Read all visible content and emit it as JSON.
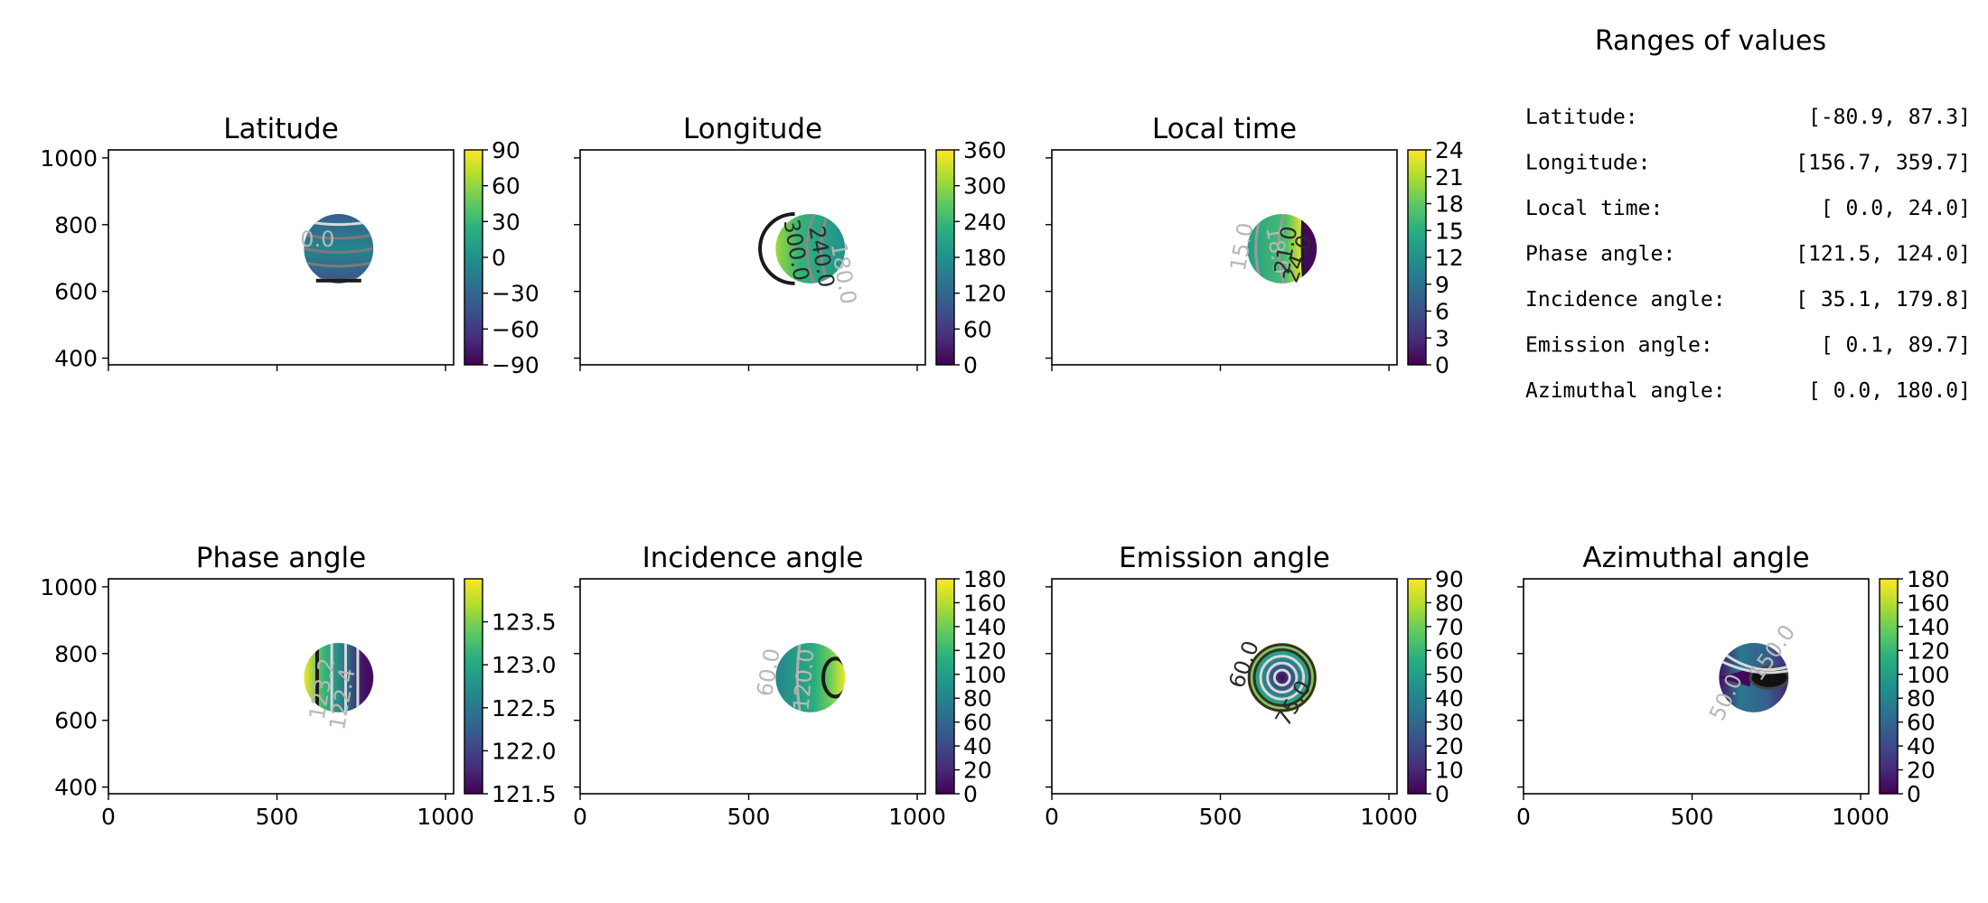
{
  "ranges_panel": {
    "title": "Ranges of values",
    "rows": [
      {
        "label": "Latitude:",
        "value": "[-80.9,  87.3]"
      },
      {
        "label": "Longitude:",
        "value": "[156.7, 359.7]"
      },
      {
        "label": "Local time:",
        "value": "[  0.0,  24.0]"
      },
      {
        "label": "Phase angle:",
        "value": "[121.5, 124.0]"
      },
      {
        "label": "Incidence angle:",
        "value": "[ 35.1, 179.8]"
      },
      {
        "label": "Emission angle:",
        "value": "[  0.1,  89.7]"
      },
      {
        "label": "Azimuthal angle:",
        "value": "[  0.0, 180.0]"
      }
    ]
  },
  "colormap": "viridis",
  "colors": {
    "viridis_low": "#440154",
    "viridis_mid": "#21918c",
    "viridis_high": "#fde725",
    "contour_dark": "#1a1a1a",
    "contour_light": "#d9d9d9"
  },
  "chart_data": [
    {
      "type": "heatmap",
      "name": "latitude",
      "title": "Latitude",
      "xlim": [
        0,
        1024
      ],
      "ylim": [
        380,
        1024
      ],
      "x_ticks": [
        0,
        500,
        1000
      ],
      "x_ticklabels": [
        "",
        "",
        ""
      ],
      "y_ticks": [
        400,
        600,
        800,
        1000
      ],
      "y_ticklabels": [
        "400",
        "600",
        "800",
        "1000"
      ],
      "disk": {
        "center_x": 683,
        "center_y": 728,
        "radius": 103
      },
      "colorbar": {
        "min": -90,
        "max": 90,
        "ticks": [
          -90,
          -60,
          -30,
          0,
          30,
          60,
          90
        ],
        "ticklabels": [
          "−90",
          "−60",
          "−30",
          "0",
          "30",
          "60",
          "90"
        ]
      },
      "contour_labels": [
        {
          "text": "0.0",
          "x": 620,
          "y": 735,
          "rotate": 0,
          "tone": "light"
        }
      ]
    },
    {
      "type": "heatmap",
      "name": "longitude",
      "title": "Longitude",
      "xlim": [
        0,
        1024
      ],
      "ylim": [
        380,
        1024
      ],
      "x_ticks": [
        0,
        500,
        1000
      ],
      "x_ticklabels": [
        "",
        "",
        ""
      ],
      "y_ticks": [
        400,
        600,
        800,
        1000
      ],
      "y_ticklabels": [
        "",
        "",
        "",
        ""
      ],
      "disk": {
        "center_x": 683,
        "center_y": 728,
        "radius": 103
      },
      "colorbar": {
        "min": 0,
        "max": 360,
        "ticks": [
          0,
          60,
          120,
          180,
          240,
          300,
          360
        ],
        "ticklabels": [
          "0",
          "60",
          "120",
          "180",
          "240",
          "300",
          "360"
        ]
      },
      "contour_labels": [
        {
          "text": "300.0",
          "x": 620,
          "y": 720,
          "rotate": 80,
          "tone": "dark"
        },
        {
          "text": "240.0",
          "x": 695,
          "y": 700,
          "rotate": 80,
          "tone": "dark"
        },
        {
          "text": "180.0",
          "x": 760,
          "y": 650,
          "rotate": 80,
          "tone": "light"
        }
      ]
    },
    {
      "type": "heatmap",
      "name": "local-time",
      "title": "Local time",
      "xlim": [
        0,
        1024
      ],
      "ylim": [
        380,
        1024
      ],
      "x_ticks": [
        0,
        500,
        1000
      ],
      "x_ticklabels": [
        "",
        "",
        ""
      ],
      "y_ticks": [
        400,
        600,
        800,
        1000
      ],
      "y_ticklabels": [
        "",
        "",
        "",
        ""
      ],
      "disk": {
        "center_x": 683,
        "center_y": 728,
        "radius": 103
      },
      "colorbar": {
        "min": 0,
        "max": 24,
        "ticks": [
          0,
          3,
          6,
          9,
          12,
          15,
          18,
          21,
          24
        ],
        "ticklabels": [
          "0",
          "3",
          "6",
          "9",
          "12",
          "15",
          "18",
          "21",
          "24"
        ]
      },
      "contour_labels": [
        {
          "text": "15.0",
          "x": 585,
          "y": 730,
          "rotate": -80,
          "tone": "light"
        },
        {
          "text": "18.0",
          "x": 648,
          "y": 720,
          "rotate": 80,
          "tone": "light"
        },
        {
          "text": "21.0",
          "x": 715,
          "y": 720,
          "rotate": -80,
          "tone": "dark"
        },
        {
          "text": "24.0",
          "x": 750,
          "y": 690,
          "rotate": -70,
          "tone": "dark"
        }
      ]
    },
    {
      "type": "heatmap",
      "name": "phase-angle",
      "title": "Phase angle",
      "xlim": [
        0,
        1024
      ],
      "ylim": [
        380,
        1024
      ],
      "x_ticks": [
        0,
        500,
        1000
      ],
      "x_ticklabels": [
        "0",
        "500",
        "1000"
      ],
      "y_ticks": [
        400,
        600,
        800,
        1000
      ],
      "y_ticklabels": [
        "400",
        "600",
        "800",
        "1000"
      ],
      "disk": {
        "center_x": 683,
        "center_y": 728,
        "radius": 103
      },
      "colorbar": {
        "min": 121.5,
        "max": 124.0,
        "ticks": [
          121.5,
          122.0,
          122.5,
          123.0,
          123.5
        ],
        "ticklabels": [
          "121.5",
          "122.0",
          "122.5",
          "123.0",
          "123.5"
        ]
      },
      "contour_labels": [
        {
          "text": "123.2",
          "x": 655,
          "y": 690,
          "rotate": -80,
          "tone": "light"
        },
        {
          "text": "122.4",
          "x": 715,
          "y": 660,
          "rotate": -80,
          "tone": "light"
        }
      ]
    },
    {
      "type": "heatmap",
      "name": "incidence-angle",
      "title": "Incidence angle",
      "xlim": [
        0,
        1024
      ],
      "ylim": [
        380,
        1024
      ],
      "x_ticks": [
        0,
        500,
        1000
      ],
      "x_ticklabels": [
        "0",
        "500",
        "1000"
      ],
      "y_ticks": [
        400,
        600,
        800,
        1000
      ],
      "y_ticklabels": [
        "",
        "",
        "",
        ""
      ],
      "disk": {
        "center_x": 683,
        "center_y": 728,
        "radius": 103
      },
      "colorbar": {
        "min": 0,
        "max": 180,
        "ticks": [
          0,
          20,
          40,
          60,
          80,
          100,
          120,
          140,
          160,
          180
        ],
        "ticklabels": [
          "0",
          "20",
          "40",
          "60",
          "80",
          "100",
          "120",
          "140",
          "160",
          "180"
        ]
      },
      "contour_labels": [
        {
          "text": "60.0",
          "x": 580,
          "y": 740,
          "rotate": -80,
          "tone": "light"
        },
        {
          "text": "120.0",
          "x": 685,
          "y": 720,
          "rotate": -85,
          "tone": "light"
        }
      ]
    },
    {
      "type": "heatmap",
      "name": "emission-angle",
      "title": "Emission angle",
      "xlim": [
        0,
        1024
      ],
      "ylim": [
        380,
        1024
      ],
      "x_ticks": [
        0,
        500,
        1000
      ],
      "x_ticklabels": [
        "0",
        "500",
        "1000"
      ],
      "y_ticks": [
        400,
        600,
        800,
        1000
      ],
      "y_ticklabels": [
        "",
        "",
        "",
        ""
      ],
      "disk": {
        "center_x": 683,
        "center_y": 728,
        "radius": 103
      },
      "colorbar": {
        "min": 0,
        "max": 90,
        "ticks": [
          0,
          10,
          20,
          30,
          40,
          50,
          60,
          70,
          80,
          90
        ],
        "ticklabels": [
          "0",
          "10",
          "20",
          "30",
          "40",
          "50",
          "60",
          "70",
          "80",
          "90"
        ]
      },
      "contour_labels": [
        {
          "text": "60.0",
          "x": 590,
          "y": 760,
          "rotate": -70,
          "tone": "dark"
        },
        {
          "text": "75.0",
          "x": 735,
          "y": 640,
          "rotate": -60,
          "tone": "dark"
        }
      ]
    },
    {
      "type": "heatmap",
      "name": "azimuthal-angle",
      "title": "Azimuthal angle",
      "xlim": [
        0,
        1024
      ],
      "ylim": [
        380,
        1024
      ],
      "x_ticks": [
        0,
        500,
        1000
      ],
      "x_ticklabels": [
        "0",
        "500",
        "1000"
      ],
      "y_ticks": [
        400,
        600,
        800,
        1000
      ],
      "y_ticklabels": [
        "",
        "",
        "",
        ""
      ],
      "disk": {
        "center_x": 683,
        "center_y": 728,
        "radius": 103
      },
      "colorbar": {
        "min": 0,
        "max": 180,
        "ticks": [
          0,
          20,
          40,
          60,
          80,
          100,
          120,
          140,
          160,
          180
        ],
        "ticklabels": [
          "0",
          "20",
          "40",
          "60",
          "80",
          "100",
          "120",
          "140",
          "160",
          "180"
        ]
      },
      "contour_labels": [
        {
          "text": "50.0",
          "x": 620,
          "y": 660,
          "rotate": -65,
          "tone": "light"
        },
        {
          "text": "150.0",
          "x": 755,
          "y": 790,
          "rotate": -55,
          "tone": "light"
        }
      ]
    }
  ]
}
